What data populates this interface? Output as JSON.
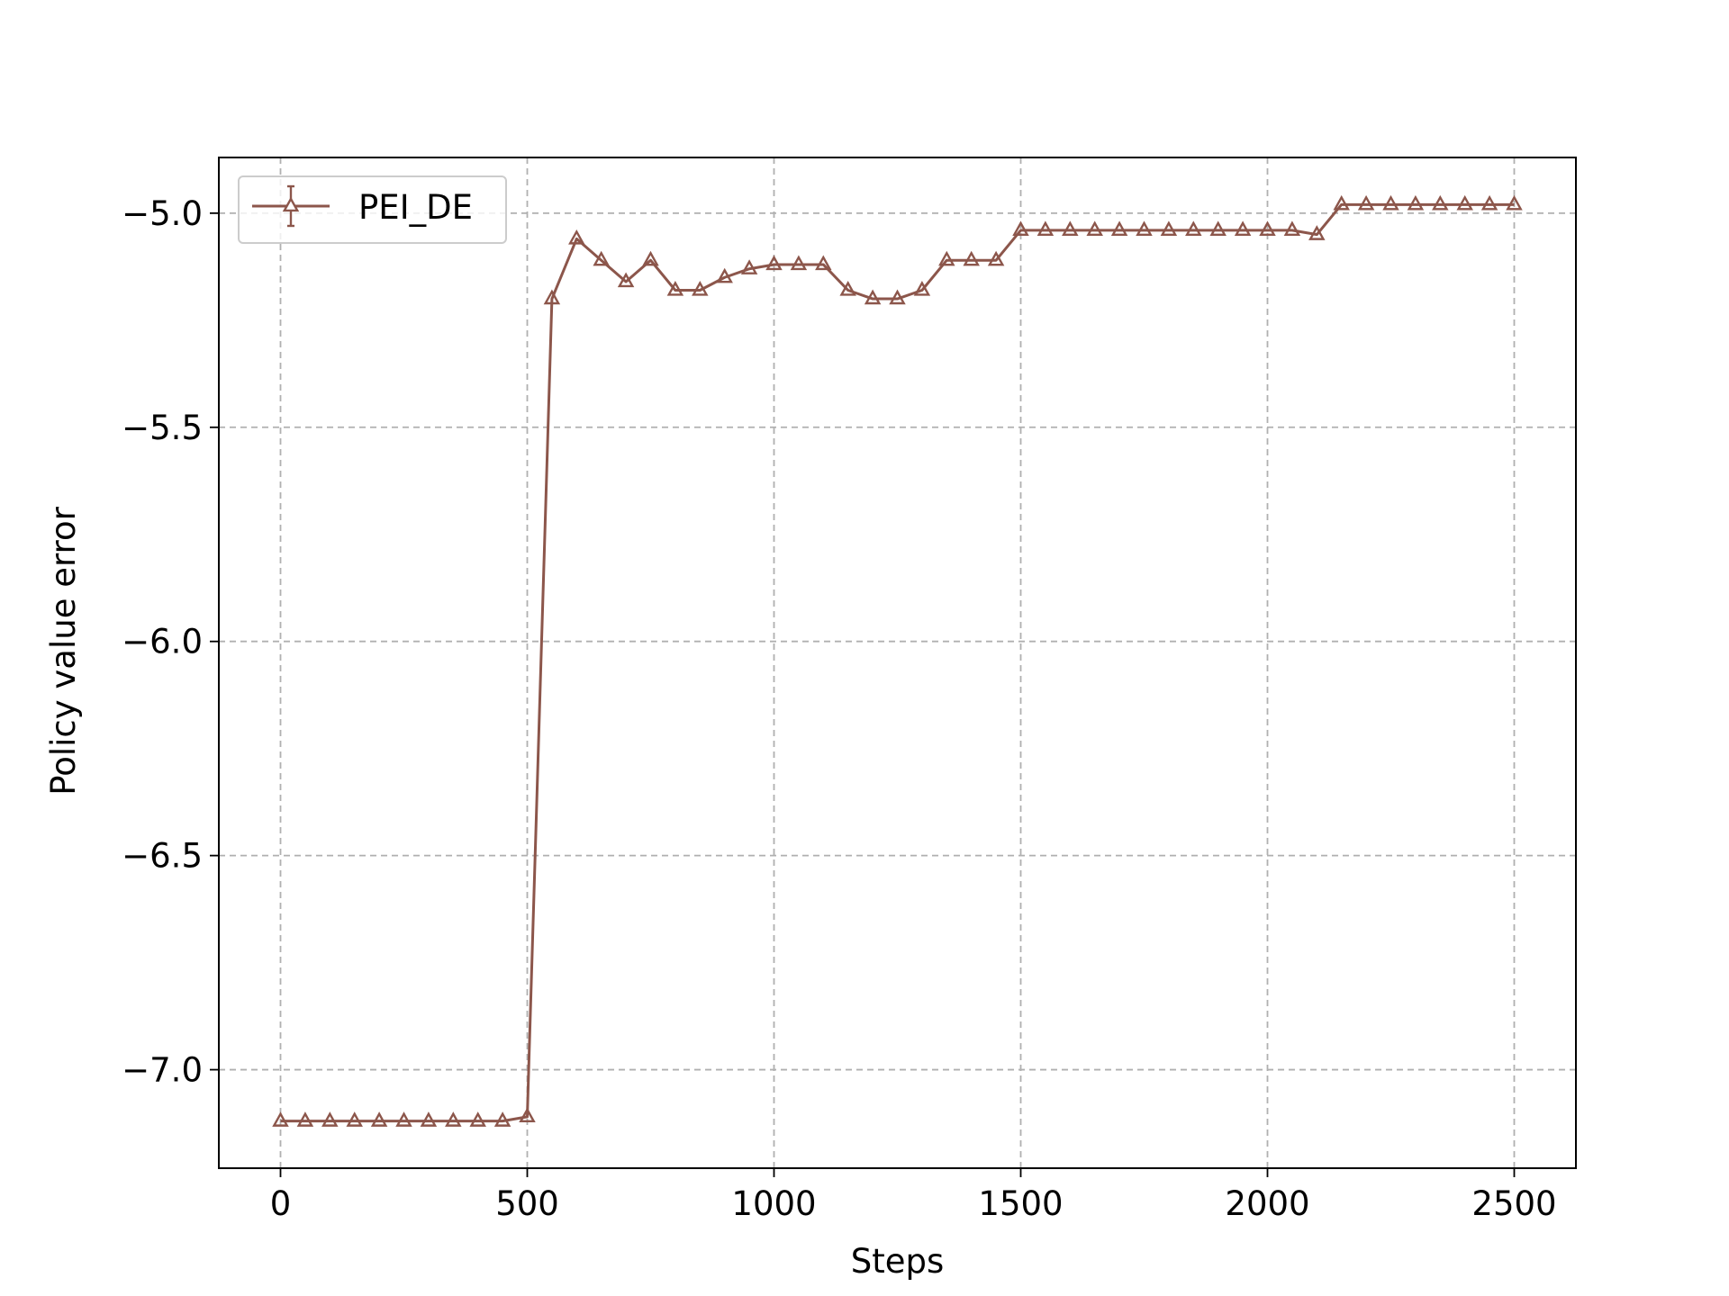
{
  "chart_data": {
    "type": "line",
    "title": "",
    "xlabel": "Steps",
    "ylabel": "Policy value error",
    "xlim": [
      -125,
      2625
    ],
    "ylim": [
      -7.23,
      -4.87
    ],
    "xticks": [
      0,
      500,
      1000,
      1500,
      2000,
      2500
    ],
    "xtick_labels": [
      "0",
      "500",
      "1000",
      "1500",
      "2000",
      "2500"
    ],
    "yticks": [
      -7.0,
      -6.5,
      -6.0,
      -5.5,
      -5.0
    ],
    "ytick_labels": [
      "−7.0",
      "−6.5",
      "−6.0",
      "−5.5",
      "−5.0"
    ],
    "grid": true,
    "legend_position": "upper-left",
    "colors": {
      "series": "#8c564b",
      "frame": "#000000",
      "grid": "#b0b0b0"
    },
    "series": [
      {
        "name": "PEI_DE",
        "marker": "triangle",
        "x": [
          0,
          50,
          100,
          150,
          200,
          250,
          300,
          350,
          400,
          450,
          500,
          550,
          600,
          650,
          700,
          750,
          800,
          850,
          900,
          950,
          1000,
          1050,
          1100,
          1150,
          1200,
          1250,
          1300,
          1350,
          1400,
          1450,
          1500,
          1550,
          1600,
          1650,
          1700,
          1750,
          1800,
          1850,
          1900,
          1950,
          2000,
          2050,
          2100,
          2150,
          2200,
          2250,
          2300,
          2350,
          2400,
          2450,
          2500
        ],
        "y": [
          -7.12,
          -7.12,
          -7.12,
          -7.12,
          -7.12,
          -7.12,
          -7.12,
          -7.12,
          -7.12,
          -7.12,
          -7.11,
          -5.2,
          -5.06,
          -5.11,
          -5.16,
          -5.11,
          -5.18,
          -5.18,
          -5.15,
          -5.13,
          -5.12,
          -5.12,
          -5.12,
          -5.18,
          -5.2,
          -5.2,
          -5.18,
          -5.11,
          -5.11,
          -5.11,
          -5.04,
          -5.04,
          -5.04,
          -5.04,
          -5.04,
          -5.04,
          -5.04,
          -5.04,
          -5.04,
          -5.04,
          -5.04,
          -5.04,
          -5.05,
          -4.98,
          -4.98,
          -4.98,
          -4.98,
          -4.98,
          -4.98,
          -4.98,
          -4.98
        ]
      }
    ]
  }
}
